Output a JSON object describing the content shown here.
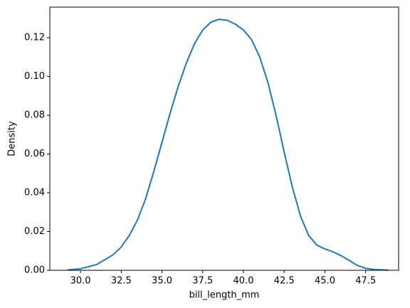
{
  "chart_data": {
    "type": "line",
    "xlabel": "bill_length_mm",
    "ylabel": "Density",
    "x": [
      29.2,
      30,
      31,
      32,
      32.5,
      33,
      33.5,
      34,
      34.5,
      35,
      35.5,
      36,
      36.5,
      37,
      37.5,
      38,
      38.5,
      39,
      39.5,
      40,
      40.5,
      41,
      41.5,
      42,
      42.5,
      43,
      43.5,
      44,
      44.5,
      45,
      45.5,
      46,
      46.5,
      47,
      47.5,
      48,
      48.9
    ],
    "values": [
      0.0002,
      0.0008,
      0.003,
      0.008,
      0.012,
      0.018,
      0.026,
      0.037,
      0.051,
      0.066,
      0.081,
      0.095,
      0.107,
      0.117,
      0.124,
      0.128,
      0.1295,
      0.129,
      0.127,
      0.124,
      0.119,
      0.11,
      0.097,
      0.08,
      0.061,
      0.043,
      0.028,
      0.018,
      0.013,
      0.011,
      0.0095,
      0.0075,
      0.005,
      0.0025,
      0.001,
      0.0004,
      0.0001
    ],
    "color": "#1f77b4",
    "xlim": [
      28.12,
      49.52
    ],
    "ylim": [
      0,
      0.1358
    ],
    "xticks": [
      {
        "value": 30,
        "label": "30.0"
      },
      {
        "value": 32.5,
        "label": "32.5"
      },
      {
        "value": 35,
        "label": "35.0"
      },
      {
        "value": 37.5,
        "label": "37.5"
      },
      {
        "value": 40,
        "label": "40.0"
      },
      {
        "value": 42.5,
        "label": "42.5"
      },
      {
        "value": 45,
        "label": "45.0"
      },
      {
        "value": 47.5,
        "label": "47.5"
      }
    ],
    "yticks": [
      {
        "value": 0,
        "label": "0.00"
      },
      {
        "value": 0.02,
        "label": "0.02"
      },
      {
        "value": 0.04,
        "label": "0.04"
      },
      {
        "value": 0.06,
        "label": "0.06"
      },
      {
        "value": 0.08,
        "label": "0.08"
      },
      {
        "value": 0.1,
        "label": "0.10"
      },
      {
        "value": 0.12,
        "label": "0.12"
      }
    ],
    "grid": false
  }
}
